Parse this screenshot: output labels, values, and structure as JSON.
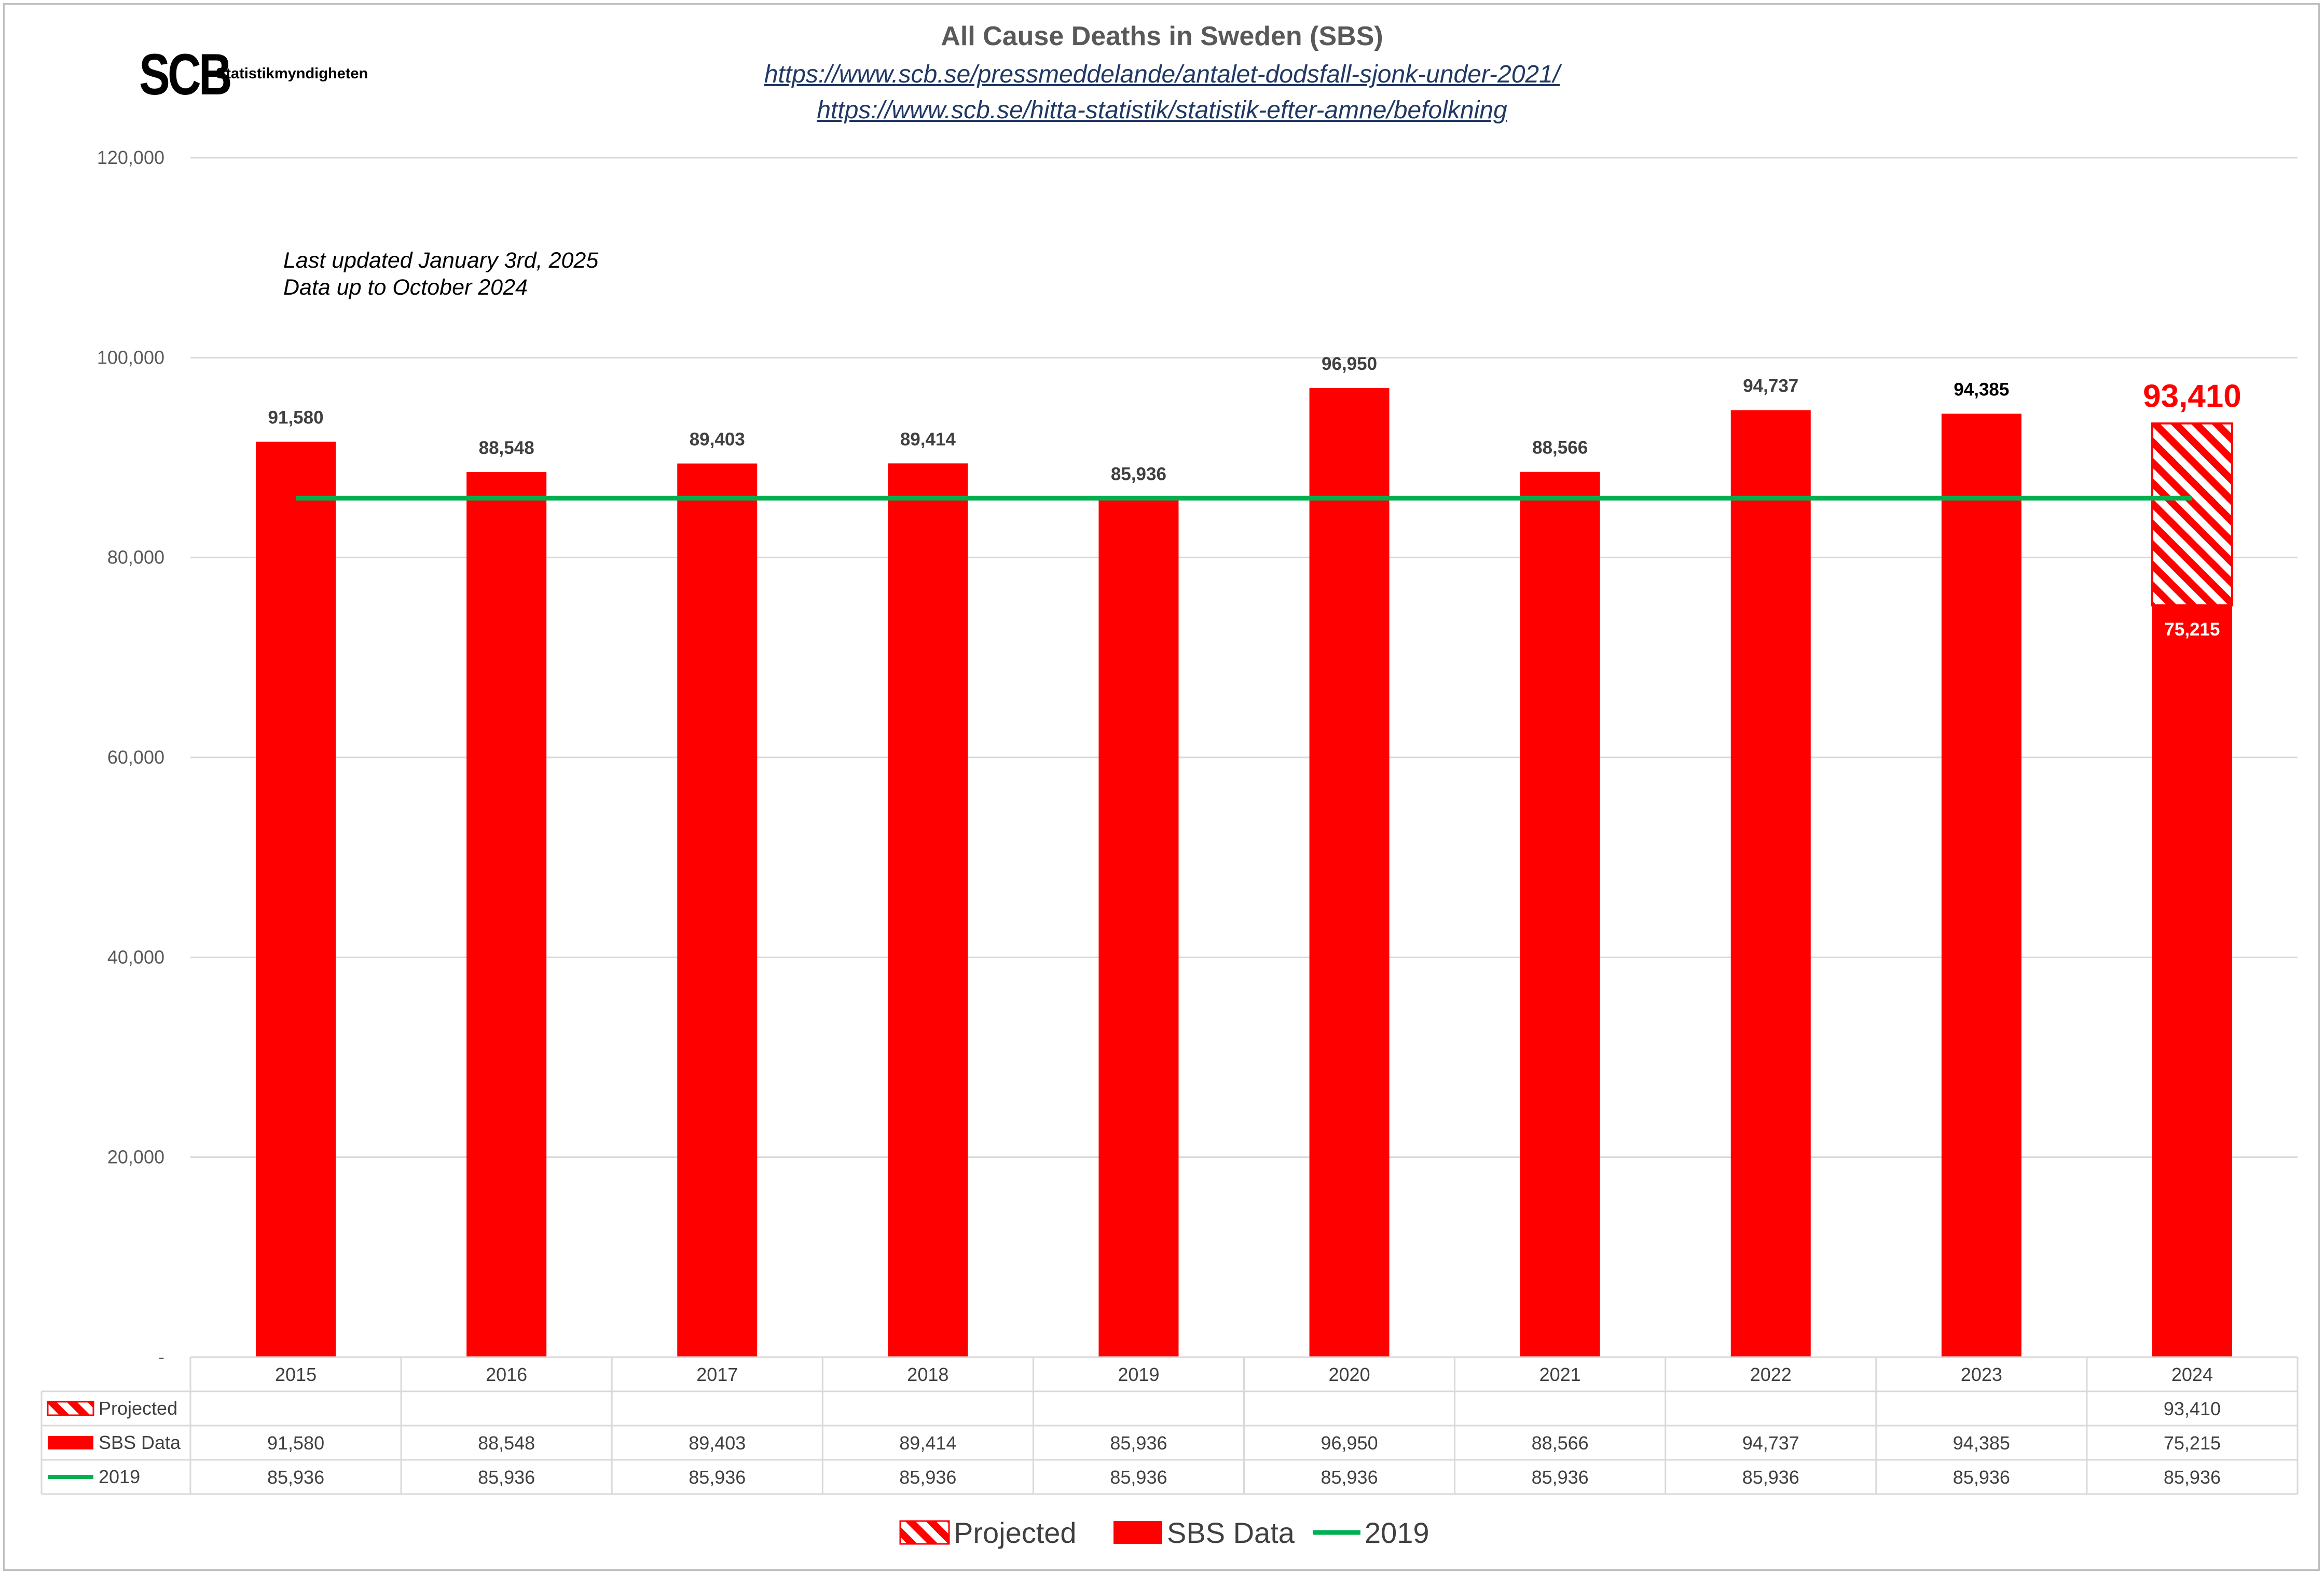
{
  "logo": {
    "mark": "SCB",
    "name": "Statistikmyndigheten"
  },
  "title": "All Cause Deaths in Sweden (SBS)",
  "links": [
    "https://www.scb.se/pressmeddelande/antalet-dodsfall-sjonk-under-2021/",
    "https://www.scb.se/hitta-statistik/statistik-efter-amne/befolkning"
  ],
  "notes": [
    "Last updated January 3rd, 2025",
    "Data up to October 2024"
  ],
  "chart_data": {
    "type": "bar",
    "categories": [
      "2015",
      "2016",
      "2017",
      "2018",
      "2019",
      "2020",
      "2021",
      "2022",
      "2023",
      "2024"
    ],
    "ylim": [
      0,
      120000
    ],
    "yticks": [
      0,
      20000,
      40000,
      60000,
      80000,
      100000,
      120000
    ],
    "ytick_labels": [
      "-",
      "20,000",
      "40,000",
      "60,000",
      "80,000",
      "100,000",
      "120,000"
    ],
    "grid": true,
    "legend_position": "bottom",
    "series": [
      {
        "name": "Projected",
        "type": "bar",
        "style": "hatched",
        "color": "#ff0000",
        "values": [
          null,
          null,
          null,
          null,
          null,
          null,
          null,
          null,
          null,
          93410
        ],
        "labels": [
          "",
          "",
          "",
          "",
          "",
          "",
          "",
          "",
          "",
          "93,410"
        ]
      },
      {
        "name": "SBS Data",
        "type": "bar",
        "color": "#ff0000",
        "values": [
          91580,
          88548,
          89403,
          89414,
          85936,
          96950,
          88566,
          94737,
          94385,
          75215
        ],
        "labels": [
          "91,580",
          "88,548",
          "89,403",
          "89,414",
          "85,936",
          "96,950",
          "88,566",
          "94,737",
          "94,385",
          "75,215"
        ]
      },
      {
        "name": "2019",
        "type": "line",
        "color": "#00b050",
        "values": [
          85936,
          85936,
          85936,
          85936,
          85936,
          85936,
          85936,
          85936,
          85936,
          85936
        ],
        "labels": [
          "85,936",
          "85,936",
          "85,936",
          "85,936",
          "85,936",
          "85,936",
          "85,936",
          "85,936",
          "85,936",
          "85,936"
        ]
      }
    ],
    "projected_label_color": "#ff0000"
  }
}
